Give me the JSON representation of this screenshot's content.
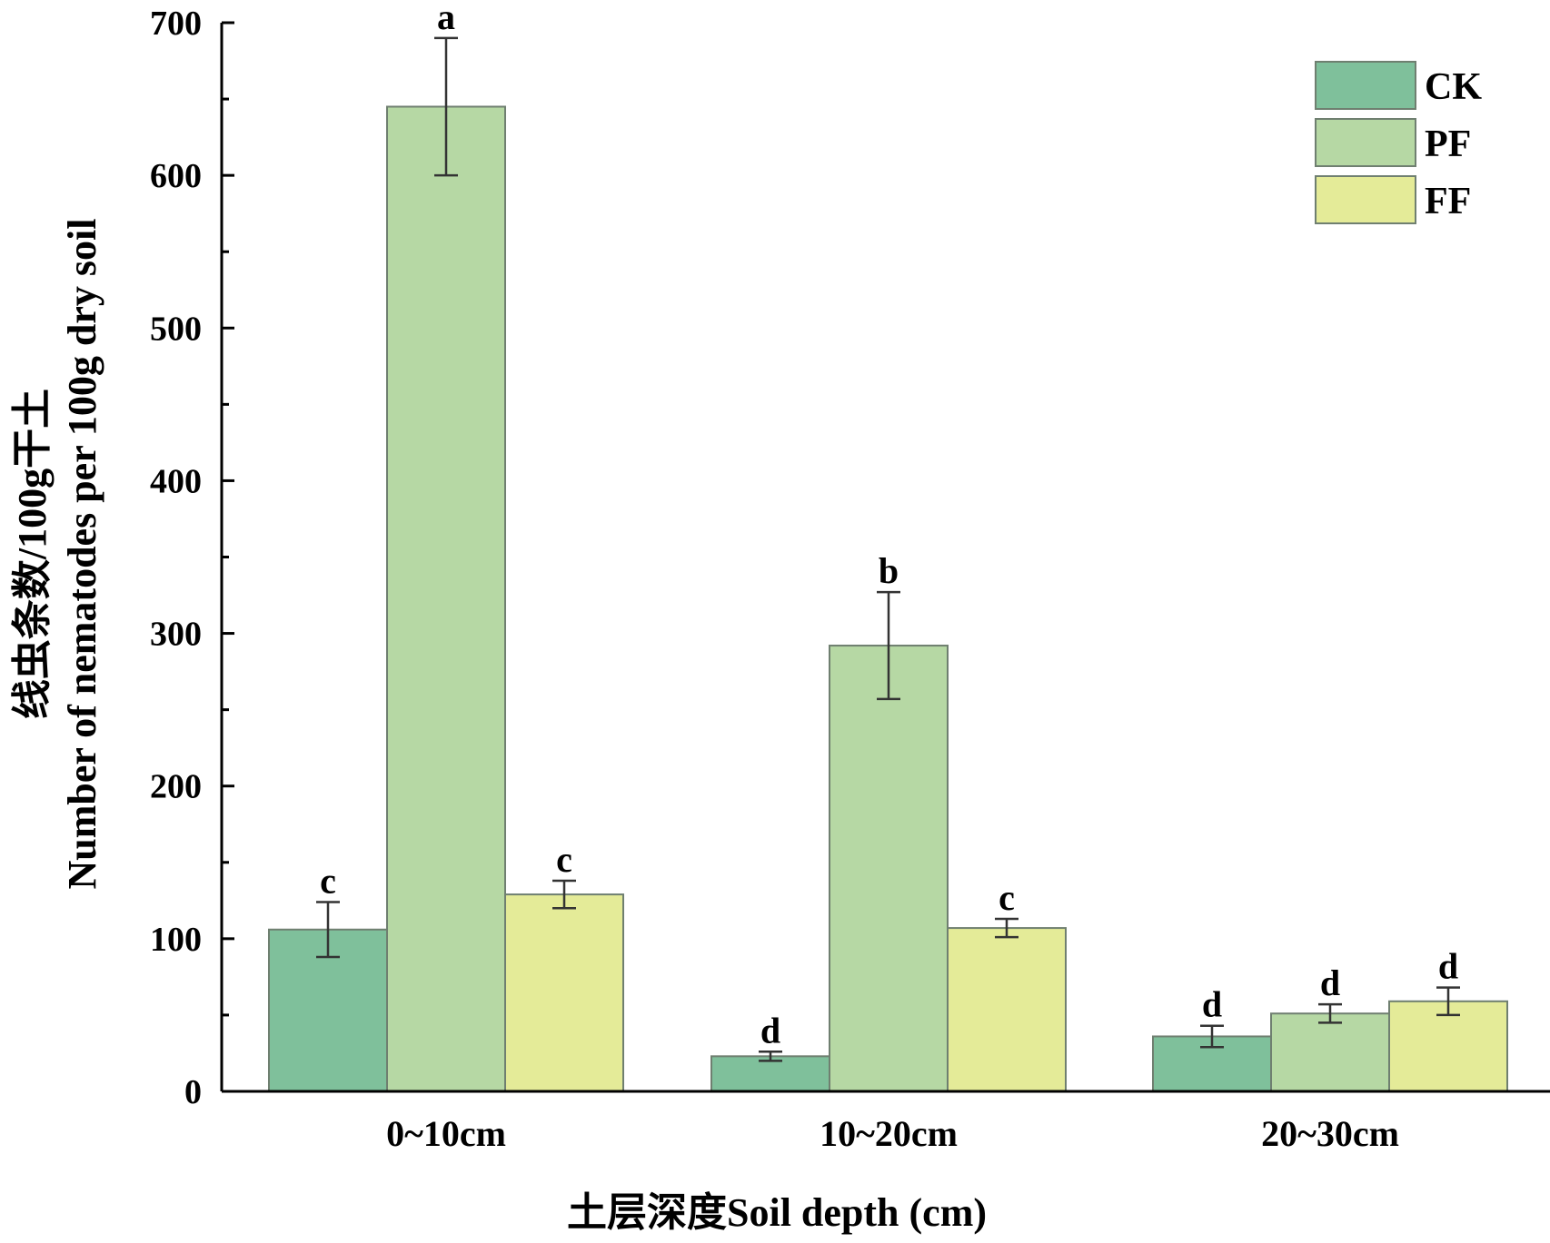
{
  "chart_data": {
    "type": "bar",
    "title": "",
    "xlabel": "土层深度Soil depth (cm)",
    "ylabel": "线虫条数/100g干土",
    "ylabel_en": "Number of nematodes per 100g dry soil",
    "ylim": [
      0,
      700
    ],
    "yticks": [
      0,
      100,
      200,
      300,
      400,
      500,
      600,
      700
    ],
    "grid": false,
    "legend_position": "top-right",
    "categories": [
      "0~10cm",
      "10~20cm",
      "20~30cm"
    ],
    "series": [
      {
        "name": "CK",
        "color": "#7fc09b",
        "values": [
          106,
          23,
          36
        ],
        "errors": [
          18,
          3,
          7
        ],
        "labels": [
          "c",
          "d",
          "d"
        ]
      },
      {
        "name": "PF",
        "color": "#b6d8a4",
        "values": [
          645,
          292,
          51
        ],
        "errors": [
          45,
          35,
          6
        ],
        "labels": [
          "a",
          "b",
          "d"
        ]
      },
      {
        "name": "FF",
        "color": "#e4eb98",
        "values": [
          129,
          107,
          59
        ],
        "errors": [
          9,
          6,
          9
        ],
        "labels": [
          "c",
          "c",
          "d"
        ]
      }
    ]
  }
}
